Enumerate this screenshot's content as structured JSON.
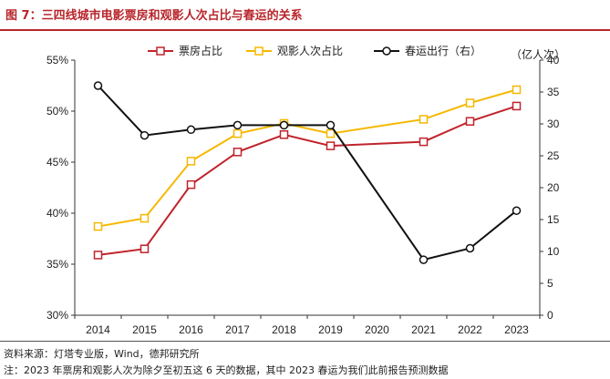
{
  "figure": {
    "title": "图 7：三四线城市电影票房和观影人次占比与春运的关系",
    "source": "资料来源：灯塔专业版，Wind，德邦研究所",
    "note": "注：2023 年票房和观影人次为除夕至初五这 6 天的数据，其中 2023 春运为我们此前报告预测数据"
  },
  "chart_data": {
    "type": "line",
    "x": [
      "2014",
      "2015",
      "2016",
      "2017",
      "2018",
      "2019",
      "2020",
      "2021",
      "2022",
      "2023"
    ],
    "y_left": {
      "ticks": [
        "30%",
        "35%",
        "40%",
        "45%",
        "50%",
        "55%"
      ],
      "ylim": [
        30,
        55
      ]
    },
    "y_right": {
      "unit_label": "（亿人次）",
      "ticks": [
        "0",
        "5",
        "10",
        "15",
        "20",
        "25",
        "30",
        "35",
        "40"
      ],
      "ylim": [
        0,
        40
      ]
    },
    "legend_position": "top",
    "grid": false,
    "series": [
      {
        "name": "票房占比",
        "axis": "left",
        "color": "#c0242c",
        "marker": "square",
        "values": [
          35.9,
          36.5,
          42.8,
          46.0,
          47.7,
          46.6,
          null,
          47.0,
          49.0,
          50.5
        ]
      },
      {
        "name": "观影人次占比",
        "axis": "left",
        "color": "#f5b800",
        "marker": "square",
        "values": [
          38.7,
          39.5,
          45.1,
          47.8,
          48.8,
          47.8,
          null,
          49.2,
          50.8,
          52.1
        ]
      },
      {
        "name": "春运出行（右）",
        "axis": "right",
        "color": "#111111",
        "marker": "circle",
        "values": [
          36.0,
          28.2,
          29.1,
          29.8,
          29.8,
          29.8,
          null,
          8.7,
          10.5,
          16.4
        ]
      }
    ]
  }
}
